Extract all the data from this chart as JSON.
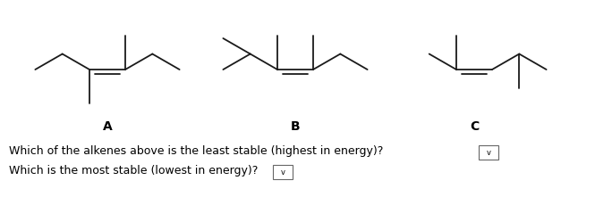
{
  "bg_color": "#ffffff",
  "label_A": "A",
  "label_B": "B",
  "label_C": "C",
  "question1": "Which of the alkenes above is the least stable (highest in energy)?",
  "question2": "Which is the most stable (lowest in energy)?",
  "fig_width": 6.84,
  "fig_height": 2.21,
  "dpi": 100,
  "font_size_label": 10,
  "font_size_question": 9.0,
  "line_width": 1.3,
  "line_color": "#1a1a1a"
}
